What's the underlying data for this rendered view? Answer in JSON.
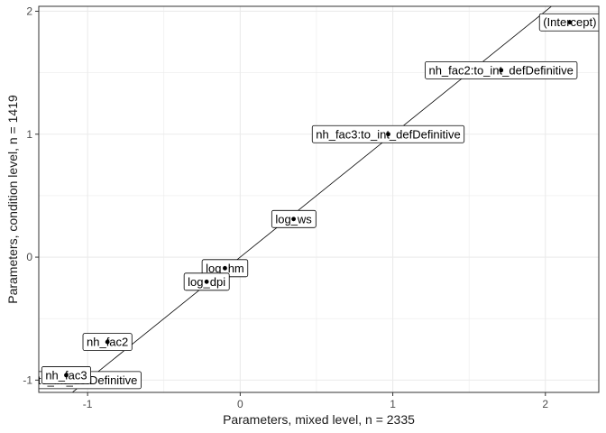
{
  "chart_data": {
    "type": "scatter",
    "xlabel": "Parameters, mixed level, n =  2335",
    "ylabel": "Parameters, condition level, n =  1419",
    "xlim": [
      -1.32,
      2.35
    ],
    "ylim": [
      -1.1,
      2.04
    ],
    "xticks": [
      -1,
      0,
      1,
      2
    ],
    "yticks": [
      -1,
      0,
      1,
      2
    ],
    "grid": true,
    "reference_line": {
      "intercept": 0.0,
      "slope": 1.0
    },
    "points": [
      {
        "label": "(Intercept)",
        "x": 2.16,
        "y": 1.91
      },
      {
        "label": "nh_fac2:to_int_defDefinitive",
        "x": 1.71,
        "y": 1.52
      },
      {
        "label": "nh_fac3:to_int_defDefinitive",
        "x": 0.97,
        "y": 1.0
      },
      {
        "label": "log_ws",
        "x": 0.35,
        "y": 0.31
      },
      {
        "label": "log_hm",
        "x": -0.1,
        "y": -0.09
      },
      {
        "label": "log_dpi",
        "x": -0.22,
        "y": -0.2
      },
      {
        "label": "nh_fac2",
        "x": -0.87,
        "y": -0.69
      },
      {
        "label": "to_int_defDefinitive",
        "x": -1.0,
        "y": -1.0
      },
      {
        "label": "nh_fac3",
        "x": -1.14,
        "y": -0.96
      }
    ]
  },
  "colors": {
    "point": "#000000",
    "grid": "#ebebeb",
    "border": "#333333",
    "line": "#000000"
  }
}
